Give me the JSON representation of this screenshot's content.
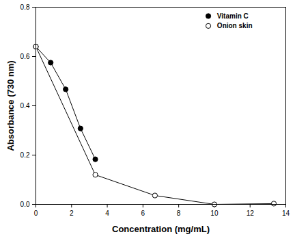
{
  "chart_data": {
    "type": "line",
    "x_label": "Concentration (mg/mL)",
    "y_label": "Absorbance (730 nm)",
    "series": [
      {
        "name": "Vitamin C",
        "color": "#000000",
        "marker": "circle",
        "x": [
          0,
          0.83,
          1.67,
          2.5,
          3.33
        ],
        "values": [
          0.64,
          0.575,
          0.467,
          0.308,
          0.183
        ]
      },
      {
        "name": "Onion skin",
        "color": "#000000",
        "marker": "circle-open",
        "x": [
          0,
          3.33,
          6.67,
          10,
          13.33
        ],
        "values": [
          0.64,
          0.12,
          0.036,
          0.0,
          0.003
        ]
      }
    ],
    "xlim": [
      0,
      14
    ],
    "xticks": [
      0,
      2,
      4,
      6,
      8,
      10,
      12,
      14
    ],
    "ylim": [
      0,
      0.8
    ],
    "yticks": [
      {
        "value": 0,
        "label": "0.0"
      },
      0.2,
      0.4,
      0.6,
      0.8
    ],
    "grid": false,
    "legend": "upper right"
  }
}
